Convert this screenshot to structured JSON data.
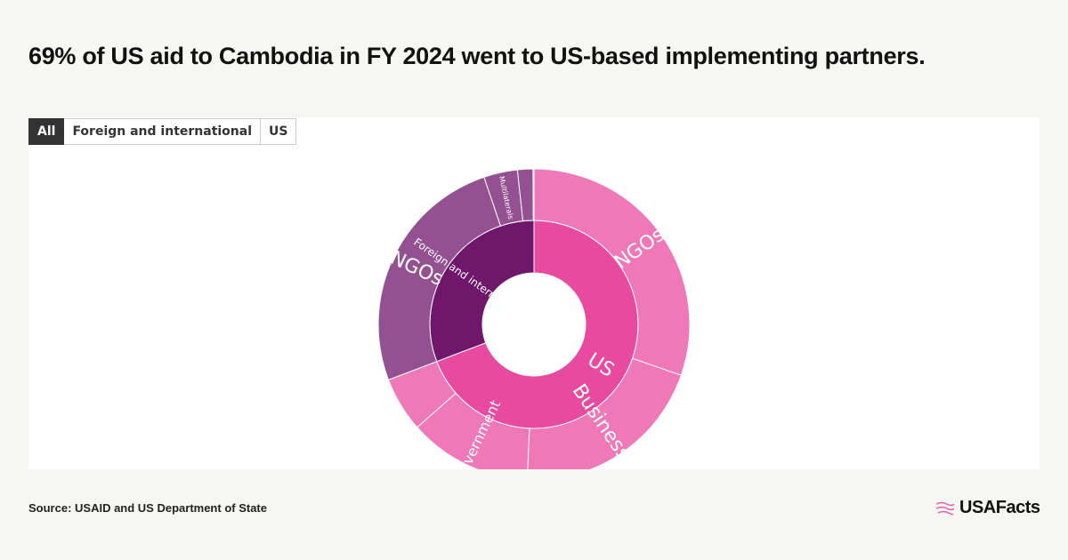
{
  "title": "69% of US aid to Cambodia in FY 2024 went to US-based implementing partners.",
  "tabs": [
    "All",
    "Foreign and international",
    "US"
  ],
  "source": "Source: USAID and US Department of State",
  "logo": "USAFacts",
  "colors": {
    "us_inner": "#e74a9f",
    "us_outer": "#ef78b8",
    "foreign_inner": "#6f176b",
    "foreign_outer": "#945191"
  },
  "chart_data": {
    "type": "sunburst",
    "unit": "percent of total",
    "inner": [
      {
        "label": "US",
        "value": 69.2,
        "color": "#e74a9f"
      },
      {
        "label": "Foreign and international",
        "value": 30.8,
        "color": "#6f176b"
      }
    ],
    "outer": [
      {
        "parent": "US",
        "label": "NGOs",
        "value": 30.3,
        "color": "#ef78b8"
      },
      {
        "parent": "US",
        "label": "Businesses",
        "value": 20.4,
        "color": "#ef78b8"
      },
      {
        "parent": "US",
        "label": "Government",
        "value": 12.8,
        "color": "#ef78b8"
      },
      {
        "parent": "US",
        "label": "",
        "value": 5.7,
        "color": "#ef78b8"
      },
      {
        "parent": "Foreign and international",
        "label": "NGOs",
        "value": 25.6,
        "color": "#945191"
      },
      {
        "parent": "Foreign and international",
        "label": "Multilaterals",
        "value": 3.5,
        "color": "#945191"
      },
      {
        "parent": "Foreign and international",
        "label": "",
        "value": 1.6,
        "color": "#945191"
      },
      {
        "parent": "Foreign and international",
        "label": "",
        "value": 0.1,
        "color": "#945191"
      }
    ]
  }
}
